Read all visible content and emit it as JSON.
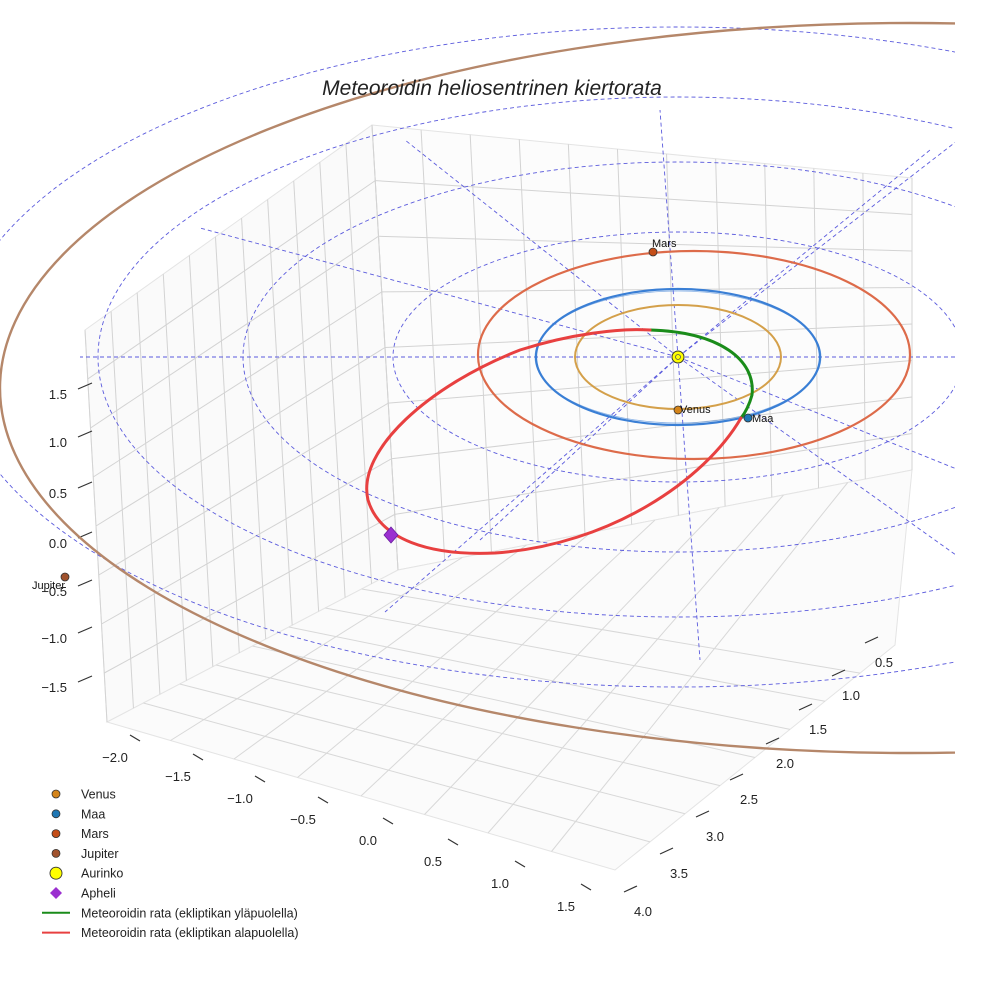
{
  "chart_data": {
    "type": "3d-line",
    "title": "Meteoroidin heliosentrinen kiertorata",
    "axes": {
      "x_ticks": [
        "−2.0",
        "−1.5",
        "−1.0",
        "−0.5",
        "0.0",
        "0.5",
        "1.0",
        "1.5"
      ],
      "y_ticks": [
        "0.5",
        "1.0",
        "1.5",
        "2.0",
        "2.5",
        "3.0",
        "3.5",
        "4.0"
      ],
      "z_ticks": [
        "1.5",
        "1.0",
        "0.5",
        "0.0",
        "−0.5",
        "−1.0",
        "−1.5"
      ],
      "x_range": [
        -2.2,
        1.7
      ],
      "y_range": [
        0.2,
        4.2
      ],
      "z_range": [
        -1.8,
        1.8
      ]
    },
    "planets": [
      {
        "name": "Venus",
        "orbit_radius_au": 0.72,
        "color": "#d4a04a",
        "marker_color": "#d4841a"
      },
      {
        "name": "Maa",
        "orbit_radius_au": 1.0,
        "color": "#3a7fd5",
        "marker_color": "#1f77b4"
      },
      {
        "name": "Mars",
        "orbit_radius_au": 1.52,
        "color": "#dd6b4a",
        "marker_color": "#c44e18"
      },
      {
        "name": "Jupiter",
        "orbit_radius_au": 5.2,
        "color": "#b5876a",
        "marker_color": "#a0522d"
      }
    ],
    "sun": {
      "name": "Aurinko",
      "color": "#ffff00"
    },
    "aphelion": {
      "name": "Apheli",
      "color": "#9b30d0"
    },
    "meteoroid_orbit": {
      "above_label": "Meteoroidin rata (ekliptikan yläpuolella)",
      "below_label": "Meteoroidin rata (ekliptikan alapuolella)",
      "above_color": "#1a8c1a",
      "below_color": "#e84040"
    },
    "legend": [
      {
        "label": "Venus",
        "marker": "dot",
        "color": "#d4841a"
      },
      {
        "label": "Maa",
        "marker": "dot",
        "color": "#1f77b4"
      },
      {
        "label": "Mars",
        "marker": "dot",
        "color": "#c44e18"
      },
      {
        "label": "Jupiter",
        "marker": "dot",
        "color": "#a0522d"
      },
      {
        "label": "Aurinko",
        "marker": "sun",
        "color": "#ffff00"
      },
      {
        "label": "Apheli",
        "marker": "diamond",
        "color": "#9b30d0"
      },
      {
        "label": "Meteoroidin rata (ekliptikan yläpuolella)",
        "marker": "line",
        "color": "#1a8c1a"
      },
      {
        "label": "Meteoroidin rata (ekliptikan alapuolella)",
        "marker": "line",
        "color": "#e84040"
      }
    ],
    "ecliptic_grid": {
      "color": "#5b5bdd"
    }
  }
}
